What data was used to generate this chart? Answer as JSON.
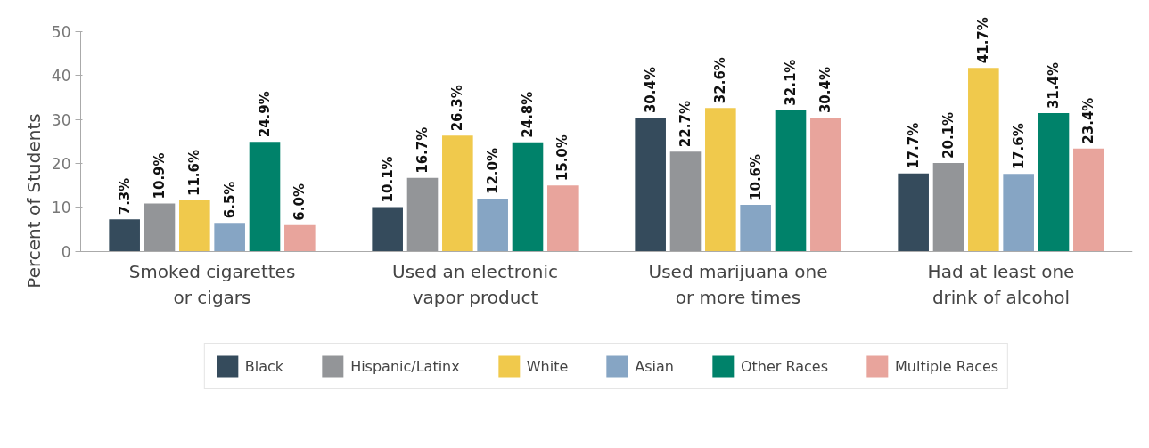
{
  "chart_data": {
    "type": "bar",
    "ylabel": "Percent of Students",
    "categories": [
      "Smoked cigarettes or cigars",
      "Used an electronic vapor product",
      "Used marijuana one or more times",
      "Had at least one drink of alcohol"
    ],
    "ylim": [
      0,
      50
    ],
    "yticks": [
      0,
      10,
      20,
      30,
      40,
      50
    ],
    "grid": false,
    "legend": "bottom",
    "series": [
      {
        "name": "Black",
        "color": "#354b5c",
        "values": [
          7.3,
          10.1,
          30.4,
          17.7
        ],
        "value_labels": [
          "7.3%",
          "10.1%",
          "30.4%",
          "17.7%"
        ]
      },
      {
        "name": "Hispanic/Latinx",
        "color": "#939598",
        "values": [
          10.9,
          16.7,
          22.7,
          20.1
        ],
        "value_labels": [
          "10.9%",
          "16.7%",
          "22.7%",
          "20.1%"
        ]
      },
      {
        "name": "White",
        "color": "#f0c94c",
        "values": [
          11.6,
          26.3,
          32.6,
          41.7
        ],
        "value_labels": [
          "11.6%",
          "26.3%",
          "32.6%",
          "41.7%"
        ]
      },
      {
        "name": "Asian",
        "color": "#86a5c4",
        "values": [
          6.5,
          12.0,
          10.6,
          17.6
        ],
        "value_labels": [
          "6.5%",
          "12.0%",
          "10.6%",
          "17.6%"
        ]
      },
      {
        "name": "Other Races",
        "color": "#00826a",
        "values": [
          24.9,
          24.8,
          32.1,
          31.4
        ],
        "value_labels": [
          "24.9%",
          "24.8%",
          "32.1%",
          "31.4%"
        ]
      },
      {
        "name": "Multiple Races",
        "color": "#e8a49c",
        "values": [
          6.0,
          15.0,
          30.4,
          23.4
        ],
        "value_labels": [
          "6.0%",
          "15.0%",
          "30.4%",
          "23.4%"
        ]
      }
    ]
  }
}
